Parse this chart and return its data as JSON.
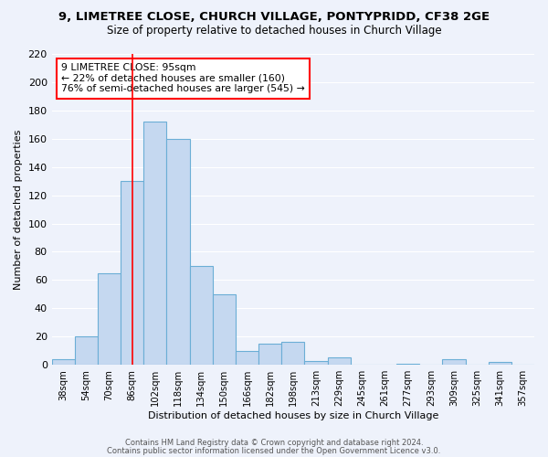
{
  "title1": "9, LIMETREE CLOSE, CHURCH VILLAGE, PONTYPRIDD, CF38 2GE",
  "title2": "Size of property relative to detached houses in Church Village",
  "xlabel": "Distribution of detached houses by size in Church Village",
  "ylabel": "Number of detached properties",
  "bin_labels": [
    "38sqm",
    "54sqm",
    "70sqm",
    "86sqm",
    "102sqm",
    "118sqm",
    "134sqm",
    "150sqm",
    "166sqm",
    "182sqm",
    "198sqm",
    "213sqm",
    "229sqm",
    "245sqm",
    "261sqm",
    "277sqm",
    "293sqm",
    "309sqm",
    "325sqm",
    "341sqm",
    "357sqm"
  ],
  "bar_values": [
    4,
    20,
    65,
    130,
    172,
    160,
    70,
    50,
    10,
    15,
    16,
    3,
    5,
    0,
    0,
    1,
    0,
    4,
    0,
    2,
    0
  ],
  "bar_color": "#c5d8f0",
  "bar_edge_color": "#6baed6",
  "ylim": [
    0,
    220
  ],
  "yticks": [
    0,
    20,
    40,
    60,
    80,
    100,
    120,
    140,
    160,
    180,
    200,
    220
  ],
  "annotation_title": "9 LIMETREE CLOSE: 95sqm",
  "annotation_line1": "← 22% of detached houses are smaller (160)",
  "annotation_line2": "76% of semi-detached houses are larger (545) →",
  "vline_x": 3.5,
  "footer1": "Contains HM Land Registry data © Crown copyright and database right 2024.",
  "footer2": "Contains public sector information licensed under the Open Government Licence v3.0.",
  "background_color": "#eef2fb",
  "grid_color": "#ffffff"
}
